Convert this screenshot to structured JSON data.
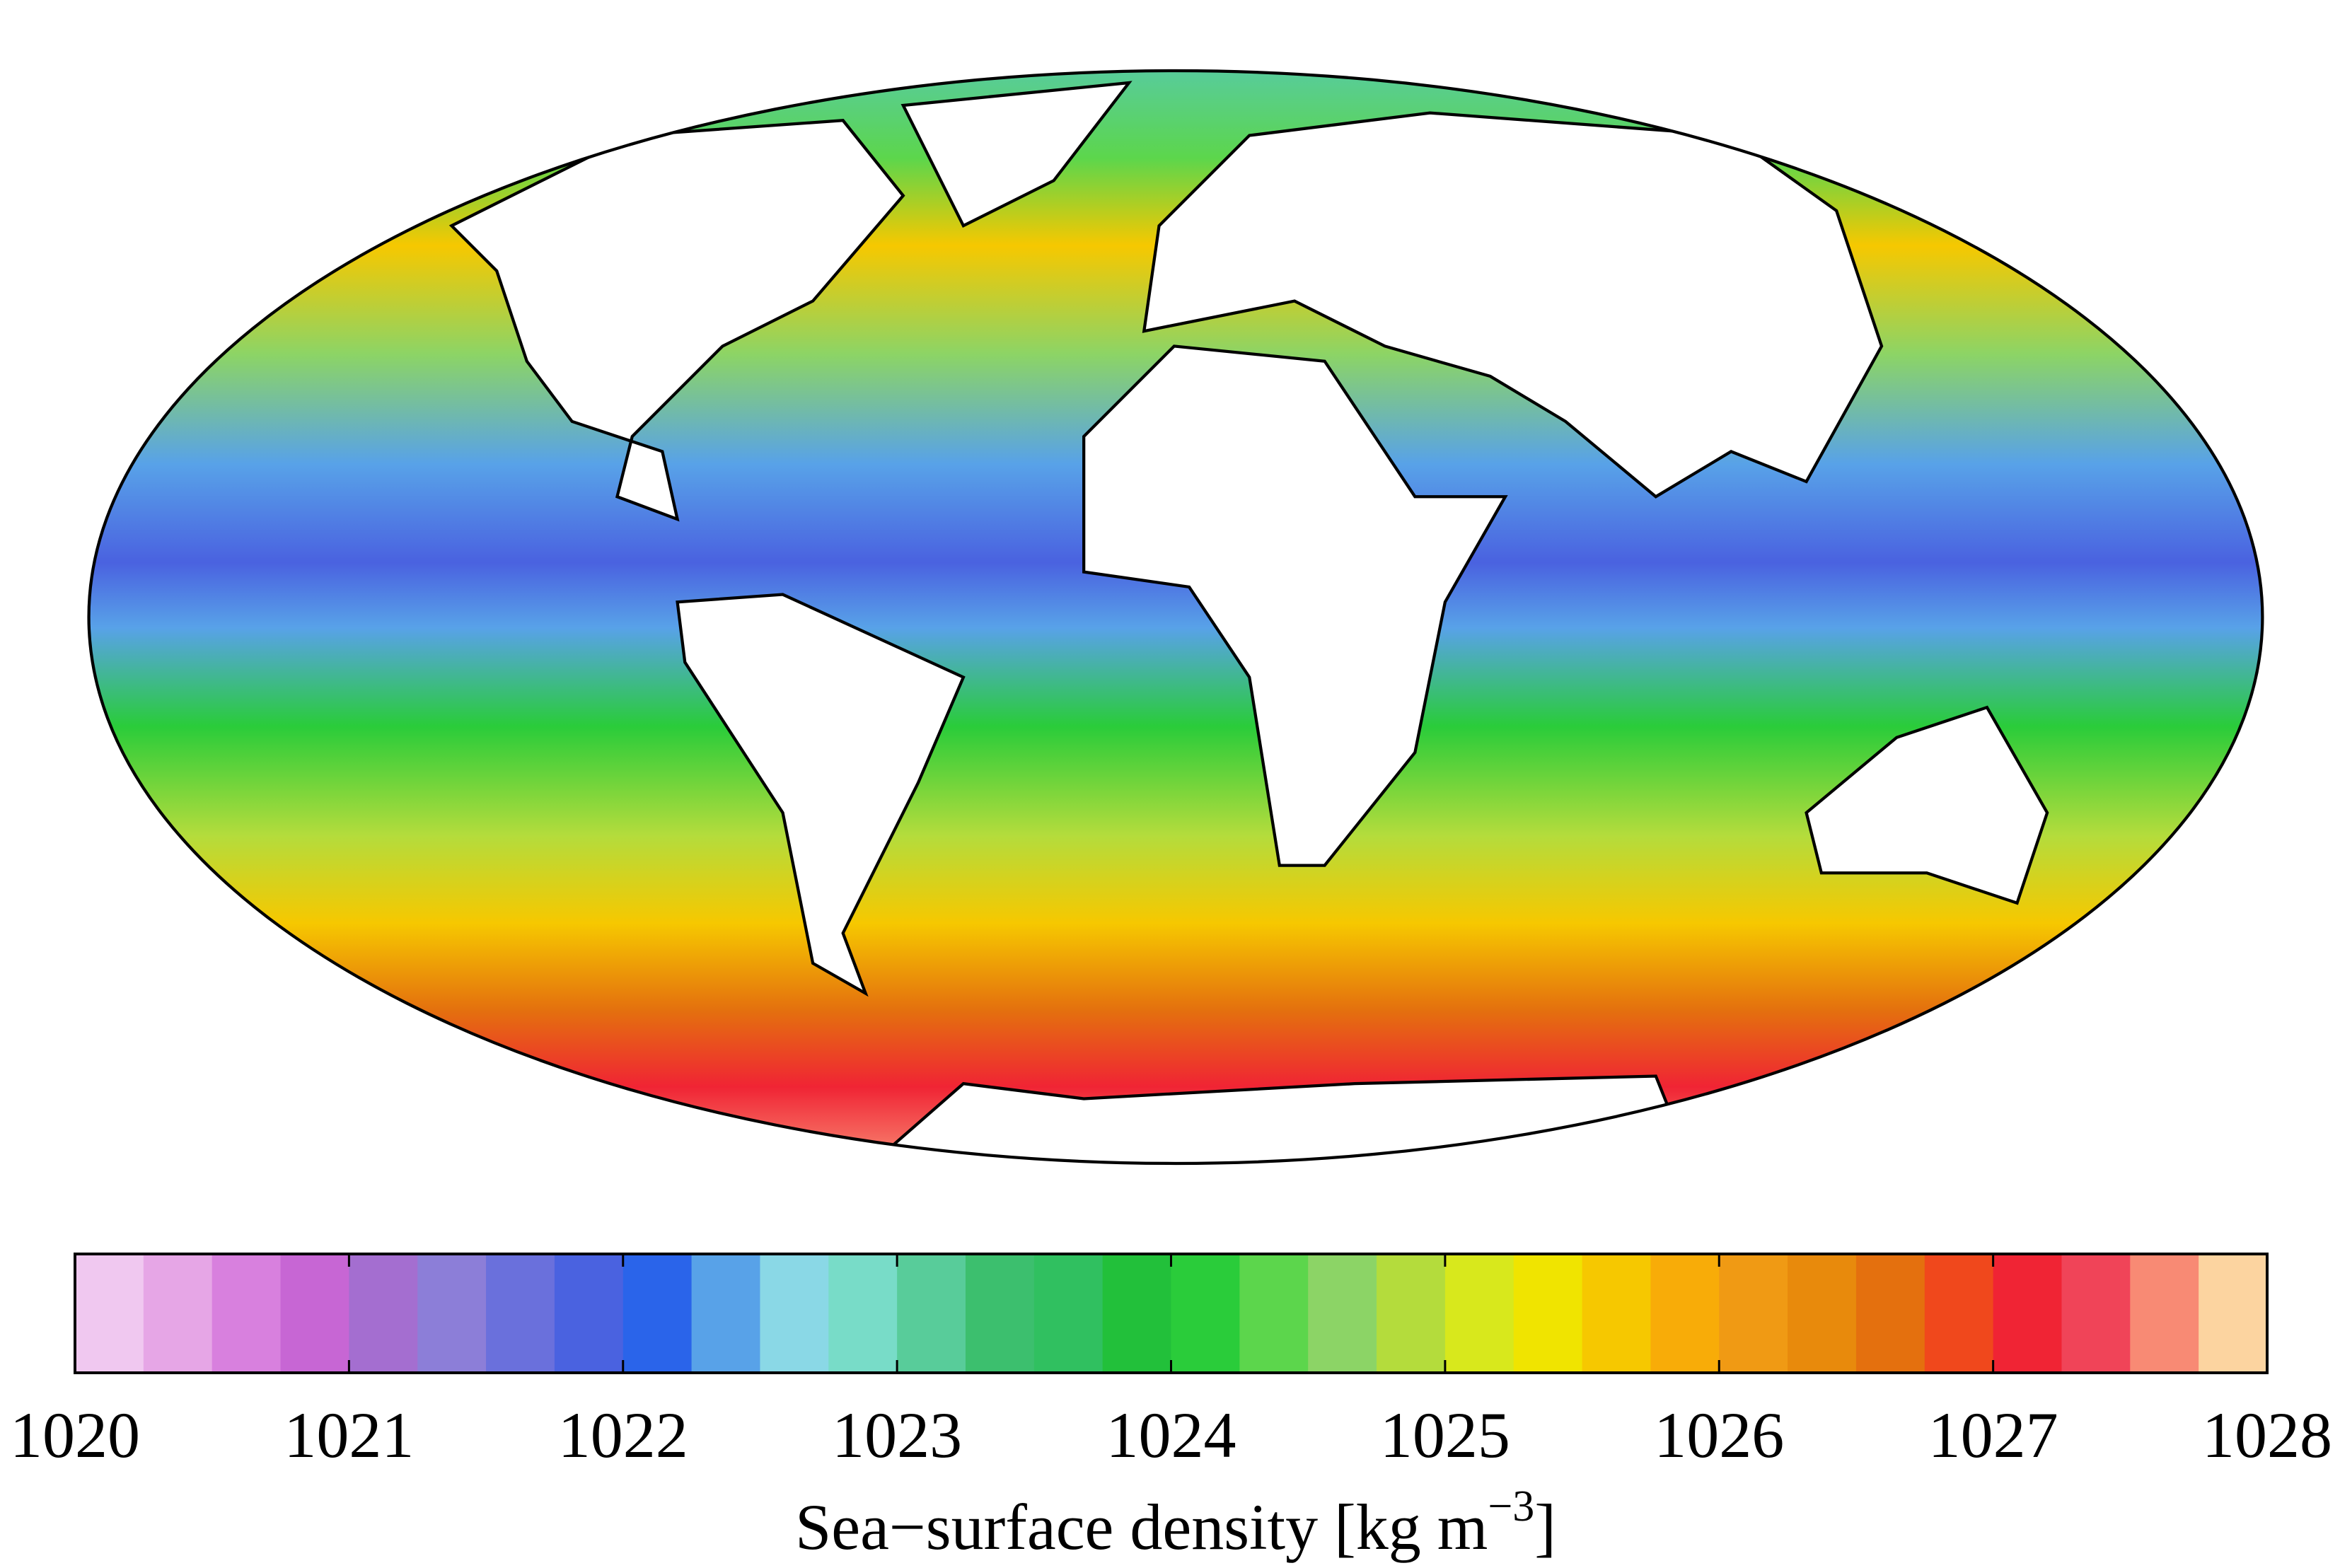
{
  "map": {
    "colorbar": {
      "lim": [
        1020,
        1028
      ],
      "ticks": [
        1020,
        1021,
        1022,
        1023,
        1024,
        1025,
        1026,
        1027,
        1028
      ],
      "colors": [
        "#f0c8f0",
        "#e6a6e6",
        "#d880de",
        "#c766d4",
        "#a46ed0",
        "#8c7ed8",
        "#6a70dc",
        "#4a62e0",
        "#2a64ea",
        "#58a2e8",
        "#8ad8e6",
        "#78dcc8",
        "#58cc9a",
        "#3cbf6e",
        "#30c060",
        "#22c03a",
        "#2acc3a",
        "#5cd64c",
        "#8cd466",
        "#b4dc3c",
        "#d8e81c",
        "#f0e400",
        "#f6c800",
        "#f8ac08",
        "#f09a14",
        "#e88a0c",
        "#e4700e",
        "#f0481c",
        "#f02434",
        "#f04458",
        "#f88a74",
        "#fcd4a0"
      ],
      "label_main": "Sea−surface density [kg m",
      "label_sup": "−3",
      "label_end": "]"
    }
  }
}
